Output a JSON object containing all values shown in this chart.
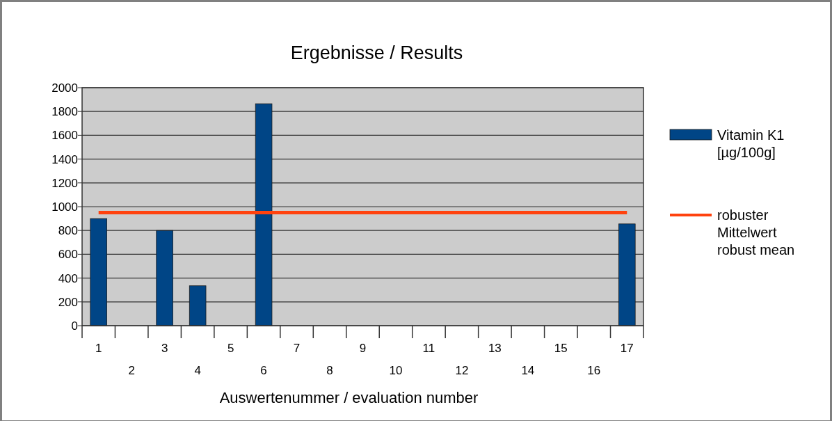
{
  "chart_data": {
    "type": "bar",
    "title": "Ergebnisse / Results",
    "xlabel": "Auswertenummer / evaluation number",
    "categories": [
      "1",
      "2",
      "3",
      "4",
      "5",
      "6",
      "7",
      "8",
      "9",
      "10",
      "11",
      "12",
      "13",
      "14",
      "15",
      "16",
      "17"
    ],
    "series": [
      {
        "name": "Vitamin K1 [µg/100g]",
        "color": "#004586",
        "values": [
          900,
          null,
          800,
          335,
          null,
          1865,
          null,
          null,
          null,
          null,
          null,
          null,
          null,
          null,
          null,
          null,
          855
        ]
      },
      {
        "name": "robuster Mittelwert robust mean",
        "type": "line",
        "color": "#ff420e",
        "values": [
          950,
          950,
          950,
          950,
          950,
          950,
          950,
          950,
          950,
          950,
          950,
          950,
          950,
          950,
          950,
          950,
          950
        ]
      }
    ],
    "ylim": [
      0,
      2000
    ],
    "yticks": [
      0,
      200,
      400,
      600,
      800,
      1000,
      1200,
      1400,
      1600,
      1800,
      2000
    ],
    "grid": "y",
    "legend": "right",
    "marker": "none",
    "line_style": "solid"
  }
}
